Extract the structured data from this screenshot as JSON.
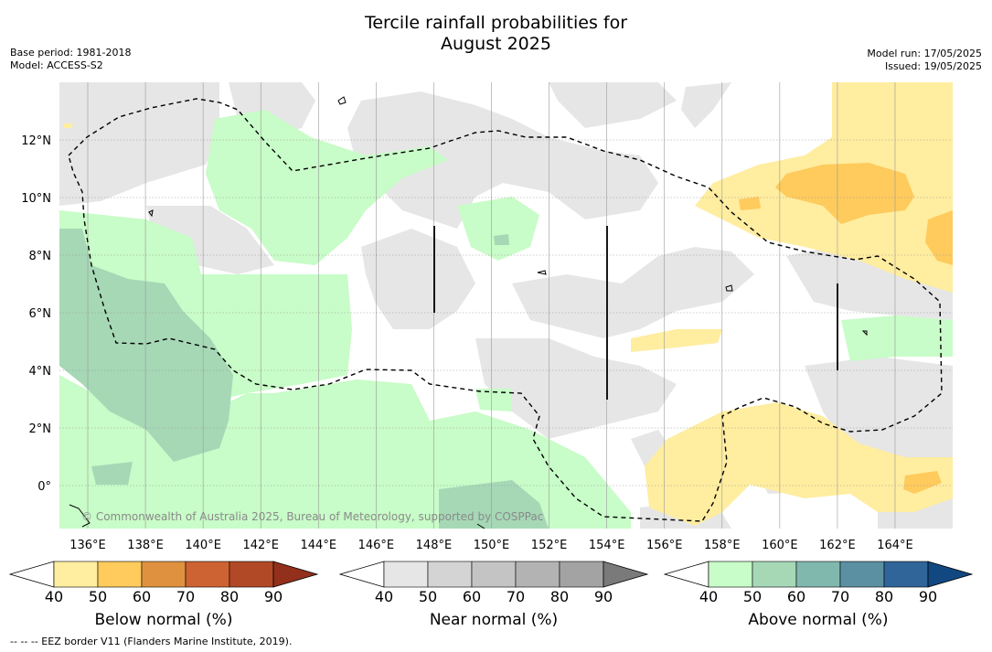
{
  "title_line1": "Tercile rainfall probabilities for",
  "title_line2": "August 2025",
  "base_period": "Base period: 1981-2018",
  "model": "Model: ACCESS-S2",
  "model_run": "Model run: 17/05/2025",
  "issued": "Issued: 19/05/2025",
  "watermark": "© Commonwealth of Australia 2025, Bureau of Meteorology, supported by COSPPac",
  "footer": "-- -- -- EEZ border V11 (Flanders Marine Institute, 2019).",
  "map": {
    "lon_range": [
      135,
      166
    ],
    "lat_range": [
      -1.5,
      14
    ],
    "lon_ticks": [
      "136°E",
      "138°E",
      "140°E",
      "142°E",
      "144°E",
      "146°E",
      "148°E",
      "150°E",
      "152°E",
      "154°E",
      "156°E",
      "158°E",
      "160°E",
      "162°E",
      "164°E"
    ],
    "lat_ticks": [
      "0°",
      "2°N",
      "4°N",
      "6°N",
      "8°N",
      "10°N",
      "12°N"
    ],
    "gridlines": true
  },
  "colorbars": [
    {
      "name": "below",
      "label": "Below normal (%)",
      "ticks": [
        "40",
        "50",
        "60",
        "70",
        "80",
        "90"
      ],
      "colors": [
        "#ffffff",
        "#ffeda0",
        "#fecb5c",
        "#e0913f",
        "#cd6332",
        "#b24926",
        "#93301b"
      ]
    },
    {
      "name": "near",
      "label": "Near normal (%)",
      "ticks": [
        "40",
        "50",
        "60",
        "70",
        "80",
        "90"
      ],
      "colors": [
        "#ffffff",
        "#e6e6e6",
        "#d4d4d4",
        "#c4c4c4",
        "#b3b3b3",
        "#a3a3a3",
        "#7a7a7a"
      ]
    },
    {
      "name": "above",
      "label": "Above normal (%)",
      "ticks": [
        "40",
        "50",
        "60",
        "70",
        "80",
        "90"
      ],
      "colors": [
        "#ffffff",
        "#c8fcc8",
        "#a6d8b6",
        "#80b8ae",
        "#5a90a2",
        "#2f6599",
        "#124882"
      ]
    }
  ]
}
